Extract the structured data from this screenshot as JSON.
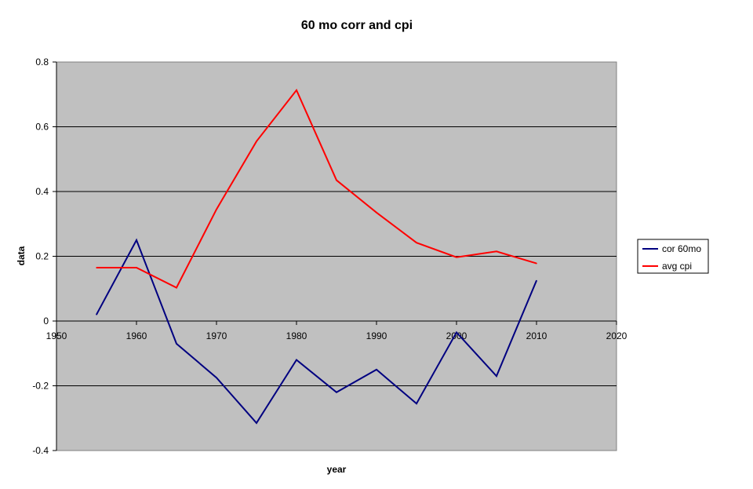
{
  "chart_data": {
    "type": "line",
    "title": "60 mo corr and cpi",
    "xlabel": "year",
    "ylabel": "data",
    "xlim": [
      1950,
      2020
    ],
    "ylim": [
      -0.4,
      0.8
    ],
    "x_ticks": [
      1950,
      1960,
      1970,
      1980,
      1990,
      2000,
      2010,
      2020
    ],
    "y_ticks": [
      -0.4,
      -0.2,
      0,
      0.2,
      0.4,
      0.6,
      0.8
    ],
    "x_tick_labels": [
      "1950",
      "1960",
      "1970",
      "1980",
      "1990",
      "2000",
      "2010",
      "2020"
    ],
    "y_tick_labels": [
      "-0.4",
      "-0.2",
      "0",
      "0.2",
      "0.4",
      "0.6",
      "0.8"
    ],
    "grid": "horizontal major gridlines",
    "legend_position": "right",
    "plot_background": "#c0c0c0",
    "x": [
      1955,
      1960,
      1965,
      1970,
      1975,
      1980,
      1985,
      1990,
      1995,
      2000,
      2005,
      2010
    ],
    "series": [
      {
        "name": "cor 60mo",
        "color": "#000080",
        "values": [
          0.02,
          0.25,
          -0.07,
          -0.175,
          -0.315,
          -0.12,
          -0.22,
          -0.15,
          -0.255,
          -0.035,
          -0.17,
          0.125
        ]
      },
      {
        "name": "avg cpi",
        "color": "#ff0000",
        "values": [
          0.165,
          0.165,
          0.103,
          0.345,
          0.555,
          0.713,
          0.435,
          0.335,
          0.242,
          0.197,
          0.215,
          0.178
        ]
      }
    ]
  }
}
